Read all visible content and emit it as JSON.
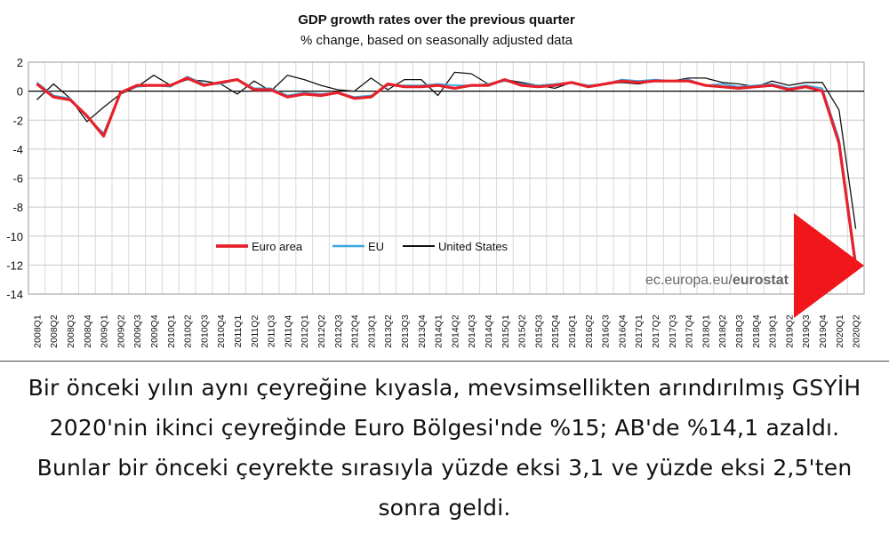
{
  "chart_data": {
    "type": "line",
    "title": "GDP growth rates over the previous quarter",
    "subtitle": "% change, based on seasonally adjusted data",
    "ylim": [
      -14,
      2
    ],
    "yticks": [
      2,
      0,
      -2,
      -4,
      -6,
      -8,
      -10,
      -12,
      -14
    ],
    "grid": true,
    "legend_position": "lower-left",
    "categories": [
      "2008Q1",
      "2008Q2",
      "2008Q3",
      "2008Q4",
      "2009Q1",
      "2009Q2",
      "2009Q3",
      "2009Q4",
      "2010Q1",
      "2010Q2",
      "2010Q3",
      "2010Q4",
      "2011Q1",
      "2011Q2",
      "2011Q3",
      "2011Q4",
      "2012Q1",
      "2012Q2",
      "2012Q3",
      "2012Q4",
      "2013Q1",
      "2013Q2",
      "2013Q3",
      "2013Q4",
      "2014Q1",
      "2014Q2",
      "2014Q3",
      "2014Q4",
      "2015Q1",
      "2015Q2",
      "2015Q3",
      "2015Q4",
      "2016Q1",
      "2016Q2",
      "2016Q3",
      "2016Q4",
      "2017Q1",
      "2017Q2",
      "2017Q3",
      "2017Q4",
      "2018Q1",
      "2018Q2",
      "2018Q3",
      "2018Q4",
      "2019Q1",
      "2019Q2",
      "2019Q3",
      "2019Q4",
      "2020Q1",
      "2020Q2"
    ],
    "series": [
      {
        "name": "Euro area",
        "color": "#e8202a",
        "values": [
          0.5,
          -0.4,
          -0.6,
          -1.7,
          -3.1,
          -0.1,
          0.4,
          0.4,
          0.4,
          0.9,
          0.4,
          0.6,
          0.8,
          0.1,
          0.1,
          -0.4,
          -0.2,
          -0.3,
          -0.1,
          -0.5,
          -0.4,
          0.5,
          0.3,
          0.3,
          0.4,
          0.2,
          0.4,
          0.4,
          0.8,
          0.4,
          0.3,
          0.4,
          0.6,
          0.3,
          0.5,
          0.7,
          0.6,
          0.7,
          0.7,
          0.7,
          0.4,
          0.3,
          0.2,
          0.3,
          0.4,
          0.1,
          0.3,
          0.0,
          -3.6,
          -12.1
        ]
      },
      {
        "name": "EU",
        "color": "#3aa7df",
        "values": [
          0.6,
          -0.3,
          -0.5,
          -1.8,
          -2.9,
          -0.1,
          0.3,
          0.4,
          0.3,
          1.0,
          0.5,
          0.5,
          0.8,
          0.2,
          0.2,
          -0.3,
          -0.1,
          -0.2,
          -0.1,
          -0.4,
          -0.3,
          0.4,
          0.4,
          0.4,
          0.5,
          0.4,
          0.4,
          0.5,
          0.7,
          0.5,
          0.4,
          0.5,
          0.6,
          0.4,
          0.5,
          0.8,
          0.7,
          0.8,
          0.7,
          0.8,
          0.4,
          0.5,
          0.3,
          0.4,
          0.5,
          0.2,
          0.4,
          0.2,
          -3.3,
          -11.7
        ]
      },
      {
        "name": "United States",
        "color": "#111111",
        "values": [
          -0.6,
          0.5,
          -0.5,
          -2.1,
          -1.1,
          -0.2,
          0.3,
          1.1,
          0.4,
          0.8,
          0.7,
          0.5,
          -0.2,
          0.7,
          0.0,
          1.1,
          0.8,
          0.4,
          0.1,
          0.0,
          0.9,
          0.1,
          0.8,
          0.8,
          -0.3,
          1.3,
          1.2,
          0.5,
          0.8,
          0.6,
          0.4,
          0.2,
          0.6,
          0.4,
          0.5,
          0.6,
          0.5,
          0.7,
          0.7,
          0.9,
          0.9,
          0.6,
          0.5,
          0.3,
          0.7,
          0.4,
          0.6,
          0.6,
          -1.3,
          -9.5
        ]
      }
    ],
    "watermark": "ec.europa.eu/eurostat",
    "watermark_plain": "ec.europa.eu/",
    "watermark_bold": "eurostat",
    "annotation_arrow_color": "#f0161b"
  },
  "caption": {
    "text": "Bir önceki yılın aynı çeyreğine kıyasla, mevsimsellikten arındırılmış GSYİH 2020'nin ikinci çeyreğinde Euro Bölgesi'nde %15; AB'de %14,1 azaldı. Bunlar bir önceki çeyrekte sırasıyla yüzde eksi 3,1 ve yüzde eksi 2,5'ten sonra geldi."
  }
}
